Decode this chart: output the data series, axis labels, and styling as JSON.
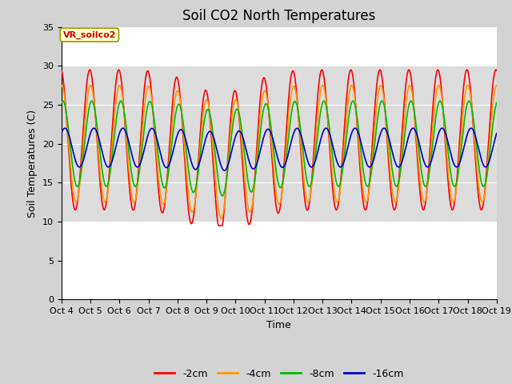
{
  "title": "Soil CO2 North Temperatures",
  "ylabel": "Soil Temperatures (C)",
  "xlabel": "Time",
  "annotation_text": "VR_soilco2",
  "ylim": [
    0,
    35
  ],
  "yticks": [
    0,
    5,
    10,
    15,
    20,
    25,
    30,
    35
  ],
  "shaded_region": [
    10,
    30
  ],
  "shaded_color": "#dcdcdc",
  "plot_bg_color": "#ffffff",
  "background_color": "#d3d3d3",
  "line_colors": [
    "#ff0000",
    "#ff9900",
    "#00bb00",
    "#0000cc"
  ],
  "line_labels": [
    "-2cm",
    "-4cm",
    "-8cm",
    "-16cm"
  ],
  "title_fontsize": 12,
  "axis_label_fontsize": 9,
  "tick_fontsize": 8,
  "xtick_labels": [
    "Oct 4",
    "Oct 5",
    "Oct 6",
    "Oct 7",
    "Oct 8",
    "Oct 9",
    "Oct 10",
    "Oct 11",
    "Oct 12",
    "Oct 13",
    "Oct 14",
    "Oct 15",
    "Oct 16",
    "Oct 17",
    "Oct 18",
    "Oct 19"
  ]
}
